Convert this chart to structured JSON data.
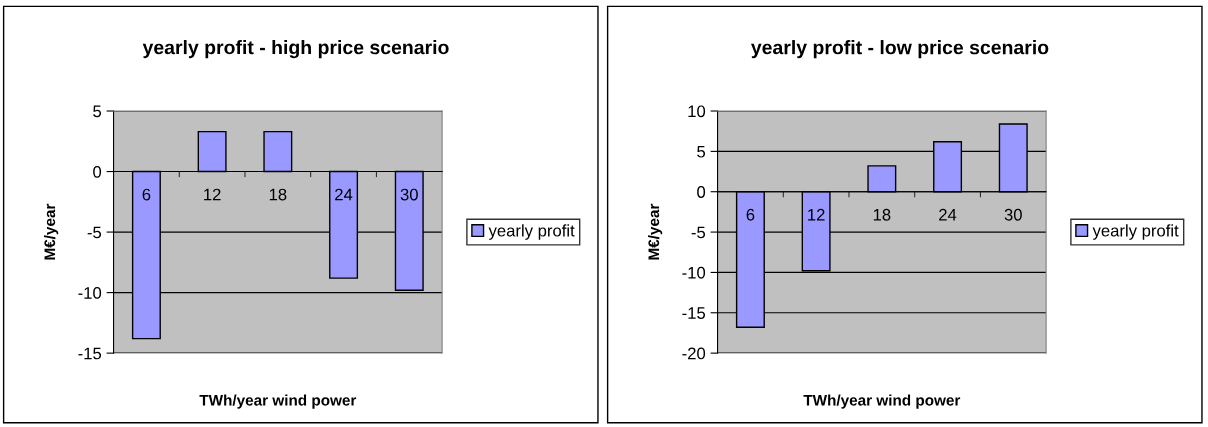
{
  "chart_data": [
    {
      "type": "bar",
      "title": "yearly profit - high price scenario",
      "xlabel": "TWh/year wind power",
      "ylabel": "M€/year",
      "categories": [
        "6",
        "12",
        "18",
        "24",
        "30"
      ],
      "series": [
        {
          "name": "yearly profit",
          "color": "#9999ff",
          "values": [
            -13.8,
            3.3,
            3.3,
            -8.8,
            -9.8
          ]
        }
      ],
      "ylim": [
        -15,
        5
      ],
      "yticks": [
        -15,
        -10,
        -5,
        0,
        5
      ],
      "grid": "y",
      "legend": "right"
    },
    {
      "type": "bar",
      "title": "yearly profit - low price scenario",
      "xlabel": "TWh/year wind power",
      "ylabel": "M€/year",
      "categories": [
        "6",
        "12",
        "18",
        "24",
        "30"
      ],
      "series": [
        {
          "name": "yearly profit",
          "color": "#9999ff",
          "values": [
            -16.8,
            -9.8,
            3.2,
            6.2,
            8.4
          ]
        }
      ],
      "ylim": [
        -20,
        10
      ],
      "yticks": [
        -20,
        -15,
        -10,
        -5,
        0,
        5,
        10
      ],
      "grid": "y",
      "legend": "right"
    }
  ]
}
